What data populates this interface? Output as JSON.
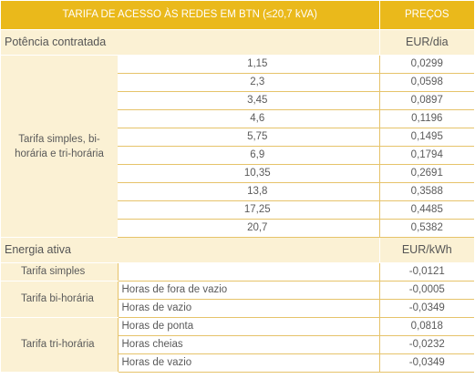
{
  "header": {
    "title": "TARIFA DE ACESSO ÀS REDES EM BTN (≤20,7 kVA)",
    "price": "PREÇOS"
  },
  "power": {
    "label": "Potência contratada",
    "unit": "EUR/dia",
    "group_label": "Tarifa simples, bi-horária e tri-horária",
    "rows": [
      {
        "kva": "1,15",
        "price": "0,0299"
      },
      {
        "kva": "2,3",
        "price": "0,0598"
      },
      {
        "kva": "3,45",
        "price": "0,0897"
      },
      {
        "kva": "4,6",
        "price": "0,1196"
      },
      {
        "kva": "5,75",
        "price": "0,1495"
      },
      {
        "kva": "6,9",
        "price": "0,1794"
      },
      {
        "kva": "10,35",
        "price": "0,2691"
      },
      {
        "kva": "13,8",
        "price": "0,3588"
      },
      {
        "kva": "17,25",
        "price": "0,4485"
      },
      {
        "kva": "20,7",
        "price": "0,5382"
      }
    ]
  },
  "energy": {
    "label": "Energia ativa",
    "unit": "EUR/kWh",
    "simple": {
      "label": "Tarifa simples",
      "price": "-0,0121"
    },
    "bi": {
      "label": "Tarifa bi-horária",
      "rows": [
        {
          "period": "Horas de fora de vazio",
          "price": "-0,0005"
        },
        {
          "period": "Horas de vazio",
          "price": "-0,0349"
        }
      ]
    },
    "tri": {
      "label": "Tarifa tri-horária",
      "rows": [
        {
          "period": "Horas de ponta",
          "price": "0,0818"
        },
        {
          "period": "Horas cheias",
          "price": "-0,0232"
        },
        {
          "period": "Horas de vazio",
          "price": "-0,0349"
        }
      ]
    }
  }
}
